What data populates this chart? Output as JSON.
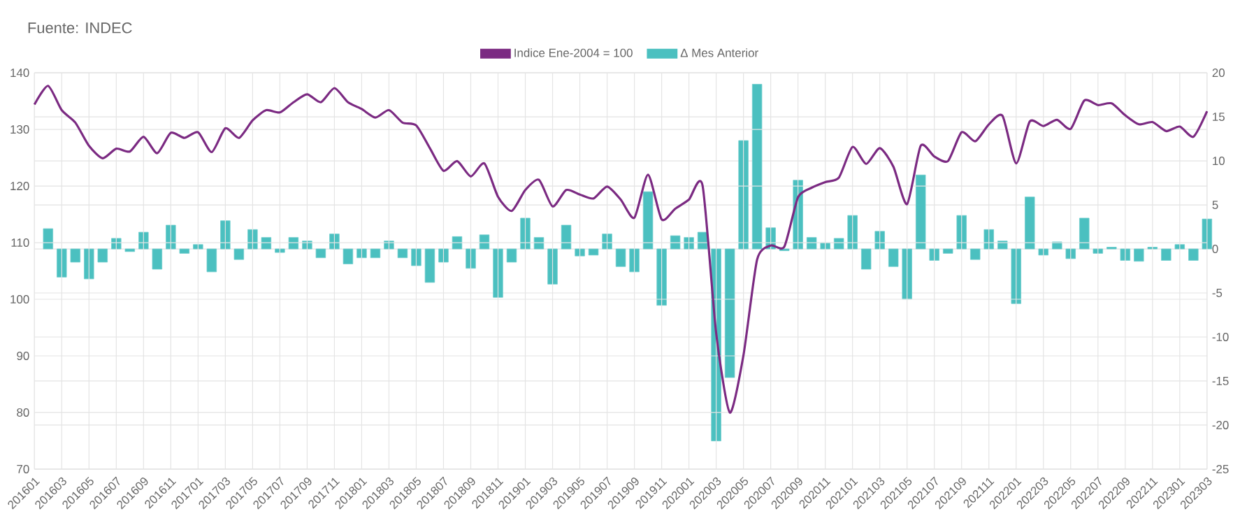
{
  "chart_data": {
    "type": "line",
    "annotations": [
      "Fuente: INDEC"
    ],
    "categories": [
      "201601",
      null,
      "201603",
      null,
      "201605",
      null,
      "201607",
      null,
      "201609",
      null,
      "201611",
      null,
      "201701",
      null,
      "201703",
      null,
      "201705",
      null,
      "201707",
      null,
      "201709",
      null,
      "201711",
      null,
      "201801",
      null,
      "201803",
      null,
      "201805",
      null,
      "201807",
      null,
      "201809",
      null,
      "201811",
      null,
      "201901",
      null,
      "201903",
      null,
      "201905",
      null,
      "201907",
      null,
      "201909",
      null,
      "201911",
      null,
      "202001",
      null,
      "202003",
      null,
      "202005",
      null,
      "202007",
      null,
      "202009",
      null,
      "202011",
      null,
      "202101",
      null,
      "202103",
      null,
      "202105",
      null,
      "202107",
      null,
      "202109",
      null,
      "202111",
      null,
      "202201",
      null,
      "202203",
      null,
      "202205",
      null,
      "202207",
      null,
      "202209",
      null,
      "202211",
      null,
      "202301",
      null,
      "202303"
    ],
    "series": [
      {
        "name": "Indice Ene-2004 = 100",
        "color": "#7b2a82",
        "values": [
          134.4,
          137.7,
          133.4,
          131.2,
          127.1,
          124.9,
          126.6,
          126.1,
          128.7,
          125.8,
          129.4,
          128.5,
          129.5,
          126.0,
          130.2,
          128.5,
          131.6,
          133.4,
          133.0,
          134.8,
          136.2,
          134.8,
          137.3,
          134.8,
          133.6,
          132.1,
          133.4,
          131.2,
          130.7,
          126.7,
          122.7,
          124.4,
          121.7,
          124.0,
          118.1,
          115.6,
          119.3,
          121.1,
          116.4,
          119.3,
          118.5,
          117.8,
          119.9,
          117.6,
          114.4,
          122.0,
          114.1,
          116.0,
          117.6,
          120.1,
          94.0,
          80.0,
          90.1,
          107.0,
          109.5,
          109.3,
          118.0,
          119.7,
          120.7,
          121.5,
          126.9,
          123.9,
          126.7,
          123.4,
          116.8,
          127.1,
          125.2,
          124.4,
          129.5,
          127.9,
          130.9,
          132.4,
          124.0,
          131.4,
          130.6,
          131.7,
          130.1,
          135.1,
          134.3,
          134.6,
          132.5,
          130.9,
          131.3,
          129.7,
          130.5,
          128.7,
          133.2
        ]
      },
      {
        "name": "Δ Mes Anterior",
        "type": "bar",
        "axis": "y2",
        "color": "#4bc0c0",
        "values": [
          null,
          2.3,
          -3.2,
          -1.5,
          -3.4,
          -1.5,
          1.2,
          -0.3,
          1.9,
          -2.3,
          2.7,
          -0.5,
          0.5,
          -2.6,
          3.2,
          -1.2,
          2.2,
          1.3,
          -0.4,
          1.3,
          0.9,
          -1.0,
          1.7,
          -1.7,
          -1.0,
          -1.0,
          0.9,
          -1.0,
          -1.9,
          -3.8,
          -1.5,
          1.4,
          -2.2,
          1.6,
          -5.5,
          -1.5,
          3.5,
          1.3,
          -4.0,
          2.7,
          -0.8,
          -0.7,
          1.7,
          -2.0,
          -2.6,
          6.5,
          -6.4,
          1.5,
          1.3,
          1.9,
          -21.8,
          -14.6,
          12.3,
          18.7,
          2.4,
          -0.2,
          7.8,
          1.3,
          0.7,
          1.2,
          3.8,
          -2.3,
          2.0,
          -2.0,
          -5.7,
          8.4,
          -1.3,
          -0.5,
          3.8,
          -1.2,
          2.2,
          0.9,
          -6.2,
          5.9,
          -0.7,
          0.8,
          -1.1,
          3.5,
          -0.5,
          0.2,
          -1.3,
          -1.4,
          0.2,
          -1.3,
          0.5,
          -1.3,
          3.4
        ]
      }
    ],
    "ylim": [
      70,
      140
    ],
    "yticks": [
      70,
      80,
      90,
      100,
      110,
      120,
      130,
      140
    ],
    "y2lim": [
      -25,
      20
    ],
    "y2ticks": [
      -25,
      -20,
      -15,
      -10,
      -5,
      0,
      5,
      10,
      15,
      20
    ],
    "grid": true,
    "legend": "top"
  }
}
